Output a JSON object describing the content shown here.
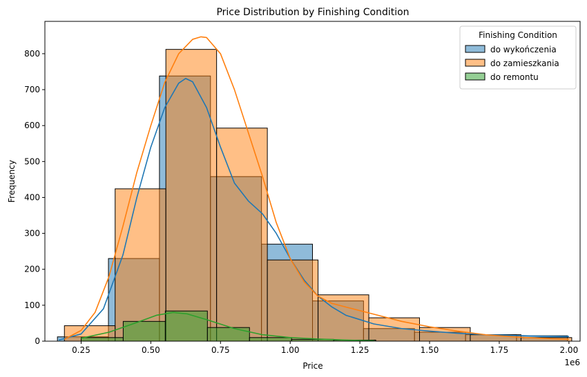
{
  "chart_data": {
    "type": "bar",
    "title": "Price Distribution by Finishing Condition",
    "xlabel": "Price",
    "ylabel": "Frequency",
    "x_offset_label": "1e6",
    "xlim": [
      0.12,
      2.04
    ],
    "ylim": [
      0,
      890
    ],
    "x_ticks": [
      {
        "value": 0.25,
        "label": "0.25"
      },
      {
        "value": 0.5,
        "label": "0.50"
      },
      {
        "value": 0.75,
        "label": "0.75"
      },
      {
        "value": 1.0,
        "label": "1.00"
      },
      {
        "value": 1.25,
        "label": "1.25"
      },
      {
        "value": 1.5,
        "label": "1.50"
      },
      {
        "value": 1.75,
        "label": "1.75"
      },
      {
        "value": 2.0,
        "label": "2.00"
      }
    ],
    "y_ticks": [
      {
        "value": 0,
        "label": "0"
      },
      {
        "value": 100,
        "label": "100"
      },
      {
        "value": 200,
        "label": "200"
      },
      {
        "value": 300,
        "label": "300"
      },
      {
        "value": 400,
        "label": "400"
      },
      {
        "value": 500,
        "label": "500"
      },
      {
        "value": 600,
        "label": "600"
      },
      {
        "value": 700,
        "label": "700"
      },
      {
        "value": 800,
        "label": "800"
      }
    ],
    "legend": {
      "title": "Finishing Condition",
      "placement": "top-right"
    },
    "series": [
      {
        "name": "do wykończenia",
        "bar_color": "#1f77b4",
        "line_color": "#1f77b4",
        "bins": [
          [
            0.165,
            0.348,
            12
          ],
          [
            0.348,
            0.531,
            230
          ],
          [
            0.531,
            0.714,
            738
          ],
          [
            0.714,
            0.897,
            458
          ],
          [
            0.897,
            1.08,
            270
          ],
          [
            1.08,
            1.263,
            112
          ],
          [
            1.263,
            1.446,
            35
          ],
          [
            1.446,
            1.629,
            25
          ],
          [
            1.629,
            1.812,
            18
          ],
          [
            1.812,
            1.995,
            15
          ]
        ],
        "kde": [
          [
            0.17,
            3
          ],
          [
            0.25,
            20
          ],
          [
            0.33,
            90
          ],
          [
            0.4,
            240
          ],
          [
            0.45,
            400
          ],
          [
            0.5,
            540
          ],
          [
            0.55,
            650
          ],
          [
            0.6,
            718
          ],
          [
            0.625,
            731
          ],
          [
            0.65,
            722
          ],
          [
            0.7,
            650
          ],
          [
            0.75,
            540
          ],
          [
            0.8,
            440
          ],
          [
            0.85,
            390
          ],
          [
            0.9,
            355
          ],
          [
            0.95,
            300
          ],
          [
            1.0,
            230
          ],
          [
            1.05,
            170
          ],
          [
            1.1,
            125
          ],
          [
            1.15,
            95
          ],
          [
            1.2,
            72
          ],
          [
            1.3,
            48
          ],
          [
            1.4,
            35
          ],
          [
            1.5,
            28
          ],
          [
            1.6,
            22
          ],
          [
            1.7,
            18
          ],
          [
            1.8,
            16
          ],
          [
            1.9,
            14
          ],
          [
            2.0,
            13
          ]
        ]
      },
      {
        "name": "do zamieszkania",
        "bar_color": "#ff7f0e",
        "line_color": "#ff7f0e",
        "bins": [
          [
            0.19,
            0.372,
            43
          ],
          [
            0.372,
            0.554,
            424
          ],
          [
            0.554,
            0.736,
            812
          ],
          [
            0.736,
            0.918,
            593
          ],
          [
            0.918,
            1.1,
            226
          ],
          [
            1.1,
            1.282,
            129
          ],
          [
            1.282,
            1.464,
            65
          ],
          [
            1.464,
            1.646,
            38
          ],
          [
            1.646,
            1.828,
            18
          ],
          [
            1.828,
            2.01,
            10
          ]
        ],
        "kde": [
          [
            0.19,
            5
          ],
          [
            0.25,
            30
          ],
          [
            0.3,
            80
          ],
          [
            0.35,
            180
          ],
          [
            0.4,
            320
          ],
          [
            0.45,
            470
          ],
          [
            0.5,
            600
          ],
          [
            0.55,
            720
          ],
          [
            0.6,
            800
          ],
          [
            0.65,
            840
          ],
          [
            0.68,
            847
          ],
          [
            0.7,
            845
          ],
          [
            0.75,
            800
          ],
          [
            0.8,
            700
          ],
          [
            0.85,
            580
          ],
          [
            0.9,
            460
          ],
          [
            0.95,
            330
          ],
          [
            1.0,
            230
          ],
          [
            1.05,
            165
          ],
          [
            1.1,
            125
          ],
          [
            1.15,
            105
          ],
          [
            1.2,
            95
          ],
          [
            1.3,
            75
          ],
          [
            1.4,
            55
          ],
          [
            1.5,
            40
          ],
          [
            1.6,
            28
          ],
          [
            1.7,
            18
          ],
          [
            1.8,
            12
          ],
          [
            1.9,
            8
          ],
          [
            2.0,
            5
          ]
        ]
      },
      {
        "name": "do remontu",
        "bar_color": "#2ca02c",
        "line_color": "#2ca02c",
        "bins": [
          [
            0.25,
            0.401,
            10
          ],
          [
            0.401,
            0.552,
            55
          ],
          [
            0.552,
            0.703,
            84
          ],
          [
            0.703,
            0.854,
            38
          ],
          [
            0.854,
            1.005,
            10
          ],
          [
            1.005,
            1.156,
            5
          ],
          [
            1.156,
            1.307,
            3
          ]
        ],
        "kde": [
          [
            0.25,
            8
          ],
          [
            0.35,
            25
          ],
          [
            0.45,
            52
          ],
          [
            0.52,
            72
          ],
          [
            0.58,
            80
          ],
          [
            0.63,
            76
          ],
          [
            0.7,
            60
          ],
          [
            0.8,
            35
          ],
          [
            0.9,
            18
          ],
          [
            1.0,
            10
          ],
          [
            1.1,
            6
          ],
          [
            1.2,
            3
          ],
          [
            1.3,
            1
          ]
        ]
      }
    ]
  }
}
